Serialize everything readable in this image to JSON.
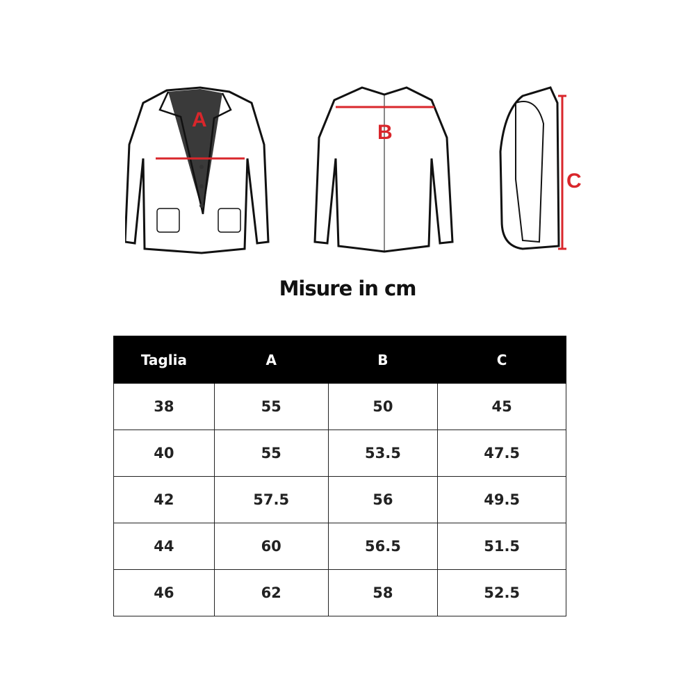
{
  "figures": {
    "front_label": "A",
    "back_label": "B",
    "side_label": "C",
    "measure_color": "#d9262b"
  },
  "title": "Misure in cm",
  "table": {
    "headers": [
      "Taglia",
      "A",
      "B",
      "C"
    ],
    "rows": [
      [
        "38",
        "55",
        "50",
        "45"
      ],
      [
        "40",
        "55",
        "53.5",
        "47.5"
      ],
      [
        "42",
        "57.5",
        "56",
        "49.5"
      ],
      [
        "44",
        "60",
        "56.5",
        "51.5"
      ],
      [
        "46",
        "62",
        "58",
        "52.5"
      ]
    ]
  }
}
